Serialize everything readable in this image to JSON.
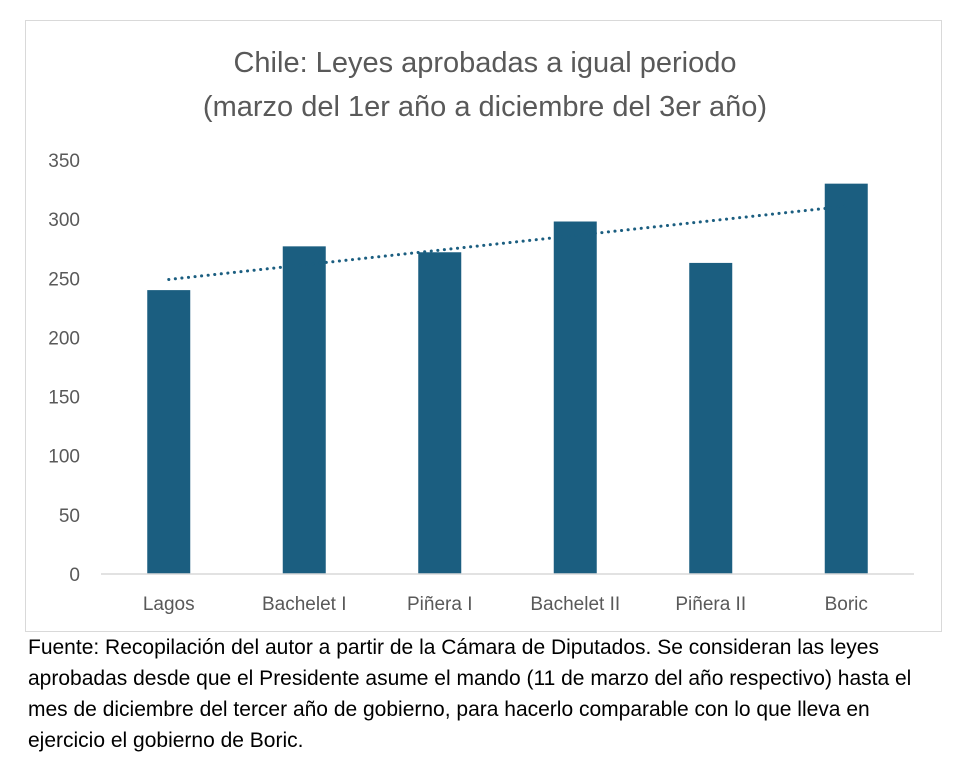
{
  "chart_data": {
    "type": "bar",
    "title_lines": [
      "Chile: Leyes aprobadas a igual periodo",
      "(marzo del 1er año a diciembre del 3er año)"
    ],
    "categories": [
      "Lagos",
      "Bachelet I",
      "Piñera I",
      "Bachelet II",
      "Piñera II",
      "Boric"
    ],
    "values": [
      240,
      277,
      272,
      298,
      263,
      330
    ],
    "ylim": [
      0,
      350
    ],
    "yticks": [
      "0",
      "50",
      "100",
      "150",
      "200",
      "250",
      "300",
      "350"
    ],
    "bar_color": "#1b5e80",
    "trendline": {
      "type": "linear",
      "style": "dotted",
      "color": "#1b5e80"
    },
    "grid": false,
    "legend": "none"
  },
  "footnote": "Fuente: Recopilación del autor a partir de la Cámara de Diputados. Se consideran las leyes aprobadas desde que el Presidente asume el mando (11 de marzo del año respectivo) hasta el mes de diciembre del tercer año de gobierno, para hacerlo comparable con lo que lleva en ejercicio el gobierno de Boric."
}
